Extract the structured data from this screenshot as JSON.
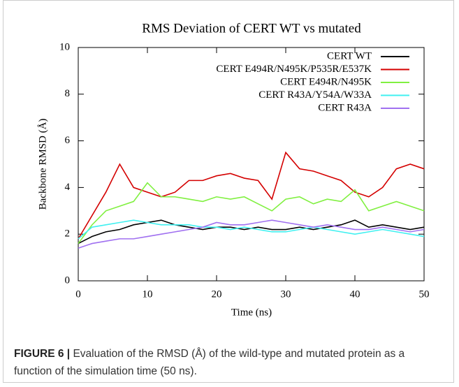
{
  "chart_data": {
    "type": "line",
    "title": "RMS Deviation of CERT WT vs mutated",
    "x_label": "Time (ns)",
    "y_label": "Backbone RMSD (Å)",
    "x": [
      0,
      2,
      4,
      6,
      8,
      10,
      12,
      14,
      16,
      18,
      20,
      22,
      24,
      26,
      28,
      30,
      32,
      34,
      36,
      38,
      40,
      42,
      44,
      46,
      48,
      50
    ],
    "series": [
      {
        "name": "CERT WT",
        "color": "#000000",
        "values": [
          1.6,
          1.9,
          2.1,
          2.2,
          2.4,
          2.5,
          2.6,
          2.4,
          2.3,
          2.2,
          2.3,
          2.3,
          2.2,
          2.3,
          2.2,
          2.2,
          2.3,
          2.2,
          2.3,
          2.4,
          2.6,
          2.3,
          2.4,
          2.3,
          2.2,
          2.3
        ]
      },
      {
        "name": "CERT E494R/N495K/P535R/E537K",
        "color": "#d40000",
        "values": [
          1.8,
          2.8,
          3.8,
          5.0,
          4.0,
          3.8,
          3.6,
          3.8,
          4.3,
          4.3,
          4.5,
          4.6,
          4.4,
          4.3,
          3.5,
          5.5,
          4.8,
          4.7,
          4.5,
          4.3,
          3.8,
          3.6,
          4.0,
          4.8,
          5.0,
          4.8
        ]
      },
      {
        "name": "CERT E494R/N495K",
        "color": "#80f040",
        "values": [
          1.6,
          2.4,
          3.0,
          3.2,
          3.4,
          4.2,
          3.6,
          3.6,
          3.5,
          3.4,
          3.6,
          3.5,
          3.6,
          3.3,
          3.0,
          3.5,
          3.6,
          3.3,
          3.5,
          3.4,
          3.9,
          3.0,
          3.2,
          3.4,
          3.2,
          3.0
        ]
      },
      {
        "name": "CERT R43A/Y54A/W33A",
        "color": "#40f0f0",
        "values": [
          1.8,
          2.3,
          2.4,
          2.5,
          2.6,
          2.5,
          2.4,
          2.4,
          2.4,
          2.3,
          2.3,
          2.2,
          2.3,
          2.2,
          2.1,
          2.1,
          2.2,
          2.3,
          2.2,
          2.1,
          2.0,
          2.1,
          2.2,
          2.1,
          2.0,
          1.9
        ]
      },
      {
        "name": "CERT R43A",
        "color": "#a070f0",
        "values": [
          1.4,
          1.6,
          1.7,
          1.8,
          1.8,
          1.9,
          2.0,
          2.1,
          2.2,
          2.3,
          2.5,
          2.4,
          2.4,
          2.5,
          2.6,
          2.5,
          2.4,
          2.3,
          2.4,
          2.3,
          2.2,
          2.2,
          2.3,
          2.2,
          2.1,
          2.2
        ]
      }
    ],
    "xlim": [
      0,
      50
    ],
    "xticks": [
      0,
      10,
      20,
      30,
      40,
      50
    ],
    "ylim": [
      0,
      10
    ],
    "yticks": [
      0,
      2,
      4,
      6,
      8,
      10
    ]
  },
  "caption": {
    "label": "FIGURE 6 |",
    "text": "Evaluation of the RMSD (Å) of the wild-type and mutated protein as a function of the simulation time (50 ns)."
  }
}
